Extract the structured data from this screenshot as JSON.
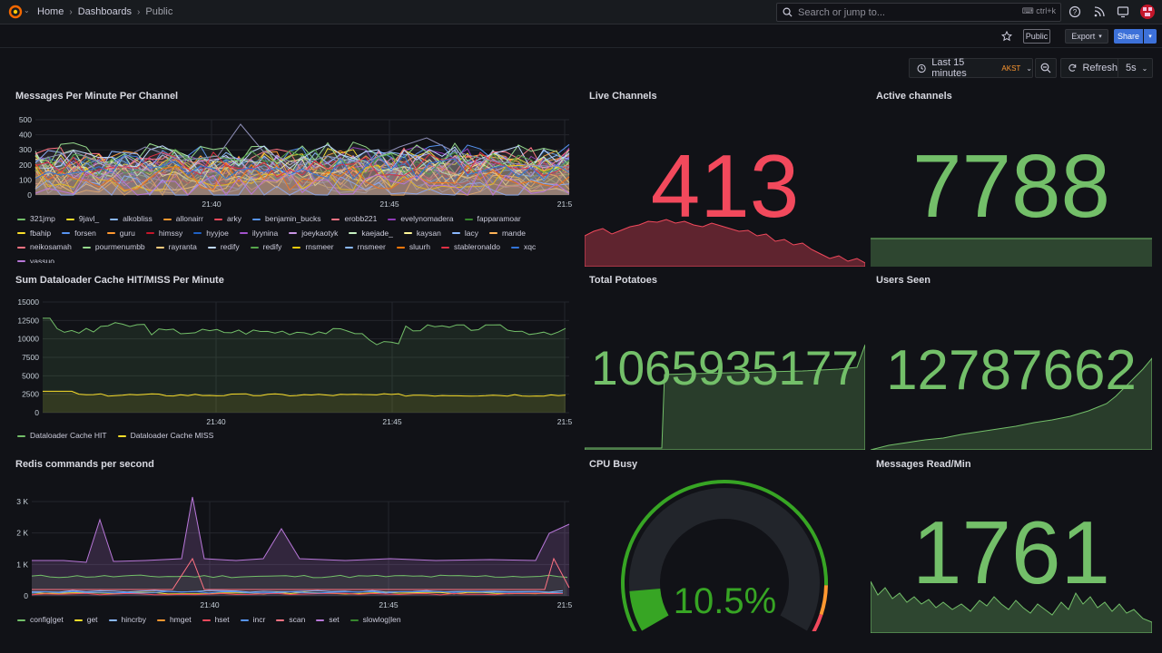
{
  "breadcrumb": {
    "home": "Home",
    "dashboards": "Dashboards",
    "current": "Public"
  },
  "search": {
    "placeholder": "Search or jump to...",
    "shortcut": "ctrl+k"
  },
  "subbar": {
    "public_badge": "Public",
    "export_label": "Export",
    "share_label": "Share"
  },
  "timebar": {
    "range_label": "Last 15 minutes",
    "timezone": "AKST",
    "refresh_label": "Refresh",
    "interval": "5s"
  },
  "colors": {
    "accent_green": "#73bf69",
    "red": "#f2495c",
    "blue_button": "#3d71d9"
  },
  "time_ticks": [
    "21:40",
    "21:45",
    "21:5"
  ],
  "panels": {
    "messages": {
      "title": "Messages Per Minute Per Channel",
      "y_ticks": [
        "500",
        "400",
        "300",
        "200",
        "100",
        "0"
      ],
      "legend": [
        {
          "name": "321jmp",
          "color": "#73bf69"
        },
        {
          "name": "9javl_",
          "color": "#fade2a"
        },
        {
          "name": "alkobliss",
          "color": "#8ab8ff"
        },
        {
          "name": "allonairr",
          "color": "#ff9830"
        },
        {
          "name": "arky",
          "color": "#f2495c"
        },
        {
          "name": "benjamin_bucks",
          "color": "#5794f2"
        },
        {
          "name": "erobb221",
          "color": "#ff7383"
        },
        {
          "name": "evelynomadera",
          "color": "#8f3bb8"
        },
        {
          "name": "fapparamoar",
          "color": "#37872d"
        },
        {
          "name": "fbahip",
          "color": "#fade2a"
        },
        {
          "name": "forsen",
          "color": "#5794f2"
        },
        {
          "name": "guru",
          "color": "#ff9830"
        },
        {
          "name": "himssy",
          "color": "#c4162a"
        },
        {
          "name": "hyyjoe",
          "color": "#1f60c4"
        },
        {
          "name": "ilyynina",
          "color": "#a352cc"
        },
        {
          "name": "joeykaotyk",
          "color": "#ca95e5"
        },
        {
          "name": "kaejade_",
          "color": "#c8f2c2"
        },
        {
          "name": "kaysan",
          "color": "#fff899"
        },
        {
          "name": "lacy",
          "color": "#8ab8ff"
        },
        {
          "name": "mande",
          "color": "#ffb357"
        },
        {
          "name": "neikosamah",
          "color": "#ff7383"
        },
        {
          "name": "pourmenumbb",
          "color": "#96d98d"
        },
        {
          "name": "rayranta",
          "color": "#ffcb7d"
        },
        {
          "name": "redify",
          "color": "#c0d8ff"
        },
        {
          "name": "redify",
          "color": "#56a64b"
        },
        {
          "name": "rnsmeer",
          "color": "#f2cc0c"
        },
        {
          "name": "rnsmeer",
          "color": "#8ab8ff"
        },
        {
          "name": "sluurh",
          "color": "#ff780a"
        },
        {
          "name": "stableronaldo",
          "color": "#e02f44"
        },
        {
          "name": "xqc",
          "color": "#3274d9"
        },
        {
          "name": "yassuo",
          "color": "#b877d9"
        }
      ]
    },
    "live": {
      "title": "Live Channels",
      "value": "413",
      "color": "#f2495c"
    },
    "active": {
      "title": "Active channels",
      "value": "7788",
      "color": "#73bf69"
    },
    "cache": {
      "title": "Sum Dataloader Cache HIT/MISS Per Minute",
      "y_ticks": [
        "15000",
        "12500",
        "10000",
        "7500",
        "5000",
        "2500",
        "0"
      ],
      "legend": [
        {
          "name": "Dataloader Cache HIT",
          "color": "#73bf69"
        },
        {
          "name": "Dataloader Cache MISS",
          "color": "#fade2a"
        }
      ]
    },
    "potatoes": {
      "title": "Total Potatoes",
      "value": "1065935177",
      "color": "#73bf69"
    },
    "users": {
      "title": "Users Seen",
      "value": "12787662",
      "color": "#73bf69"
    },
    "redis": {
      "title": "Redis commands per second",
      "y_ticks": [
        "3 K",
        "2 K",
        "1 K",
        "0"
      ],
      "legend": [
        {
          "name": "config|get",
          "color": "#73bf69"
        },
        {
          "name": "get",
          "color": "#fade2a"
        },
        {
          "name": "hincrby",
          "color": "#8ab8ff"
        },
        {
          "name": "hmget",
          "color": "#ff9830"
        },
        {
          "name": "hset",
          "color": "#f2495c"
        },
        {
          "name": "incr",
          "color": "#5794f2"
        },
        {
          "name": "scan",
          "color": "#ff7383"
        },
        {
          "name": "set",
          "color": "#b877d9"
        },
        {
          "name": "slowlog|len",
          "color": "#37872d"
        }
      ]
    },
    "cpu": {
      "title": "CPU Busy",
      "value": "10.5%",
      "percent": 10.5,
      "color": "#37a524"
    },
    "msgread": {
      "title": "Messages Read/Min",
      "value": "1761",
      "color": "#73bf69"
    }
  }
}
